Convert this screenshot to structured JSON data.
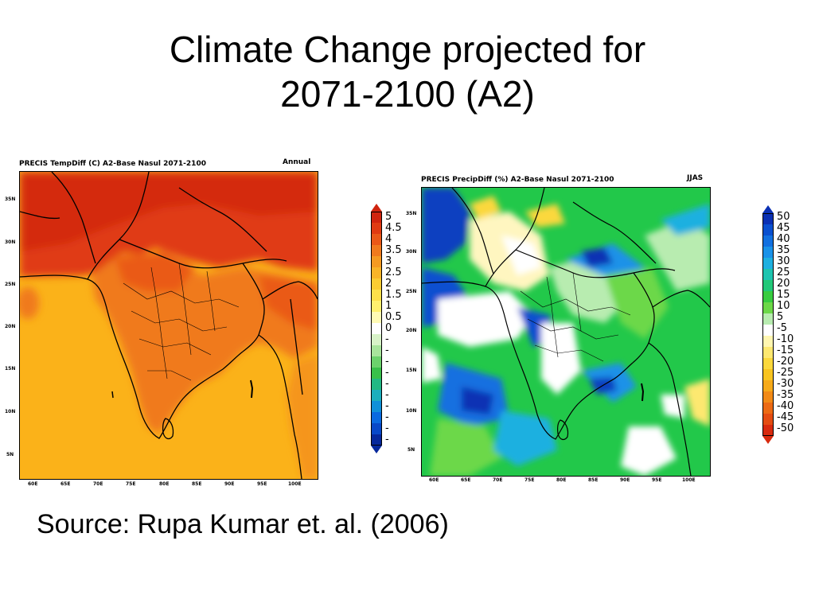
{
  "slide": {
    "title_line1": "Climate Change projected for",
    "title_line2": "2071-2100 (A2)",
    "source": "Source: Rupa Kumar et. al. (2006)"
  },
  "left_panel": {
    "header": "PRECIS TempDiff (C) A2-Base Nasul 2071-2100",
    "season": "Annual",
    "lat_labels": [
      "35N",
      "30N",
      "25N",
      "20N",
      "15N",
      "10N",
      "5N"
    ],
    "lon_labels": [
      "60E",
      "65E",
      "70E",
      "75E",
      "80E",
      "85E",
      "90E",
      "95E",
      "100E"
    ],
    "colorbar": {
      "labels": [
        "5",
        "4.5",
        "4",
        "3.5",
        "3",
        "2.5",
        "2",
        "1.5",
        "1",
        "0.5",
        "0",
        "-",
        "-",
        "-",
        "-",
        "-",
        "-",
        "-",
        "-",
        "-",
        "-"
      ],
      "colors": [
        "#d0240e",
        "#e03a12",
        "#ea5818",
        "#f07a1e",
        "#f59a22",
        "#f9b428",
        "#fbcc32",
        "#fde04a",
        "#fff06e",
        "#fffab4",
        "#ffffff",
        "#d8f2c8",
        "#a8e49c",
        "#6cd26c",
        "#38c04a",
        "#22b884",
        "#1cae bd",
        "#1090d8",
        "#0a6ae0",
        "#0848c8",
        "#06289c"
      ]
    }
  },
  "right_panel": {
    "header": "PRECIS PrecipDiff (%) A2-Base Nasul 2071-2100",
    "season": "JJAS",
    "lat_labels": [
      "35N",
      "30N",
      "25N",
      "20N",
      "15N",
      "10N",
      "5N"
    ],
    "lon_labels": [
      "60E",
      "65E",
      "70E",
      "75E",
      "80E",
      "85E",
      "90E",
      "95E",
      "100E"
    ],
    "colorbar": {
      "labels": [
        "50",
        "45",
        "40",
        "35",
        "30",
        "25",
        "20",
        "15",
        "10",
        "5",
        "-5",
        "-10",
        "-15",
        "-20",
        "-25",
        "-30",
        "-35",
        "-40",
        "-45",
        "-50"
      ],
      "colors": [
        "#0a30b4",
        "#0a50d0",
        "#1270e0",
        "#1a92e8",
        "#1eb0e0",
        "#1ec4b0",
        "#22c878",
        "#38cc40",
        "#6cd848",
        "#b8ecb0",
        "#ffffff",
        "#fff6b0",
        "#fde870",
        "#fbd83c",
        "#f8c420",
        "#f6aa1a",
        "#f28a16",
        "#ec6a14",
        "#e44c12",
        "#d82a0e"
      ]
    }
  }
}
